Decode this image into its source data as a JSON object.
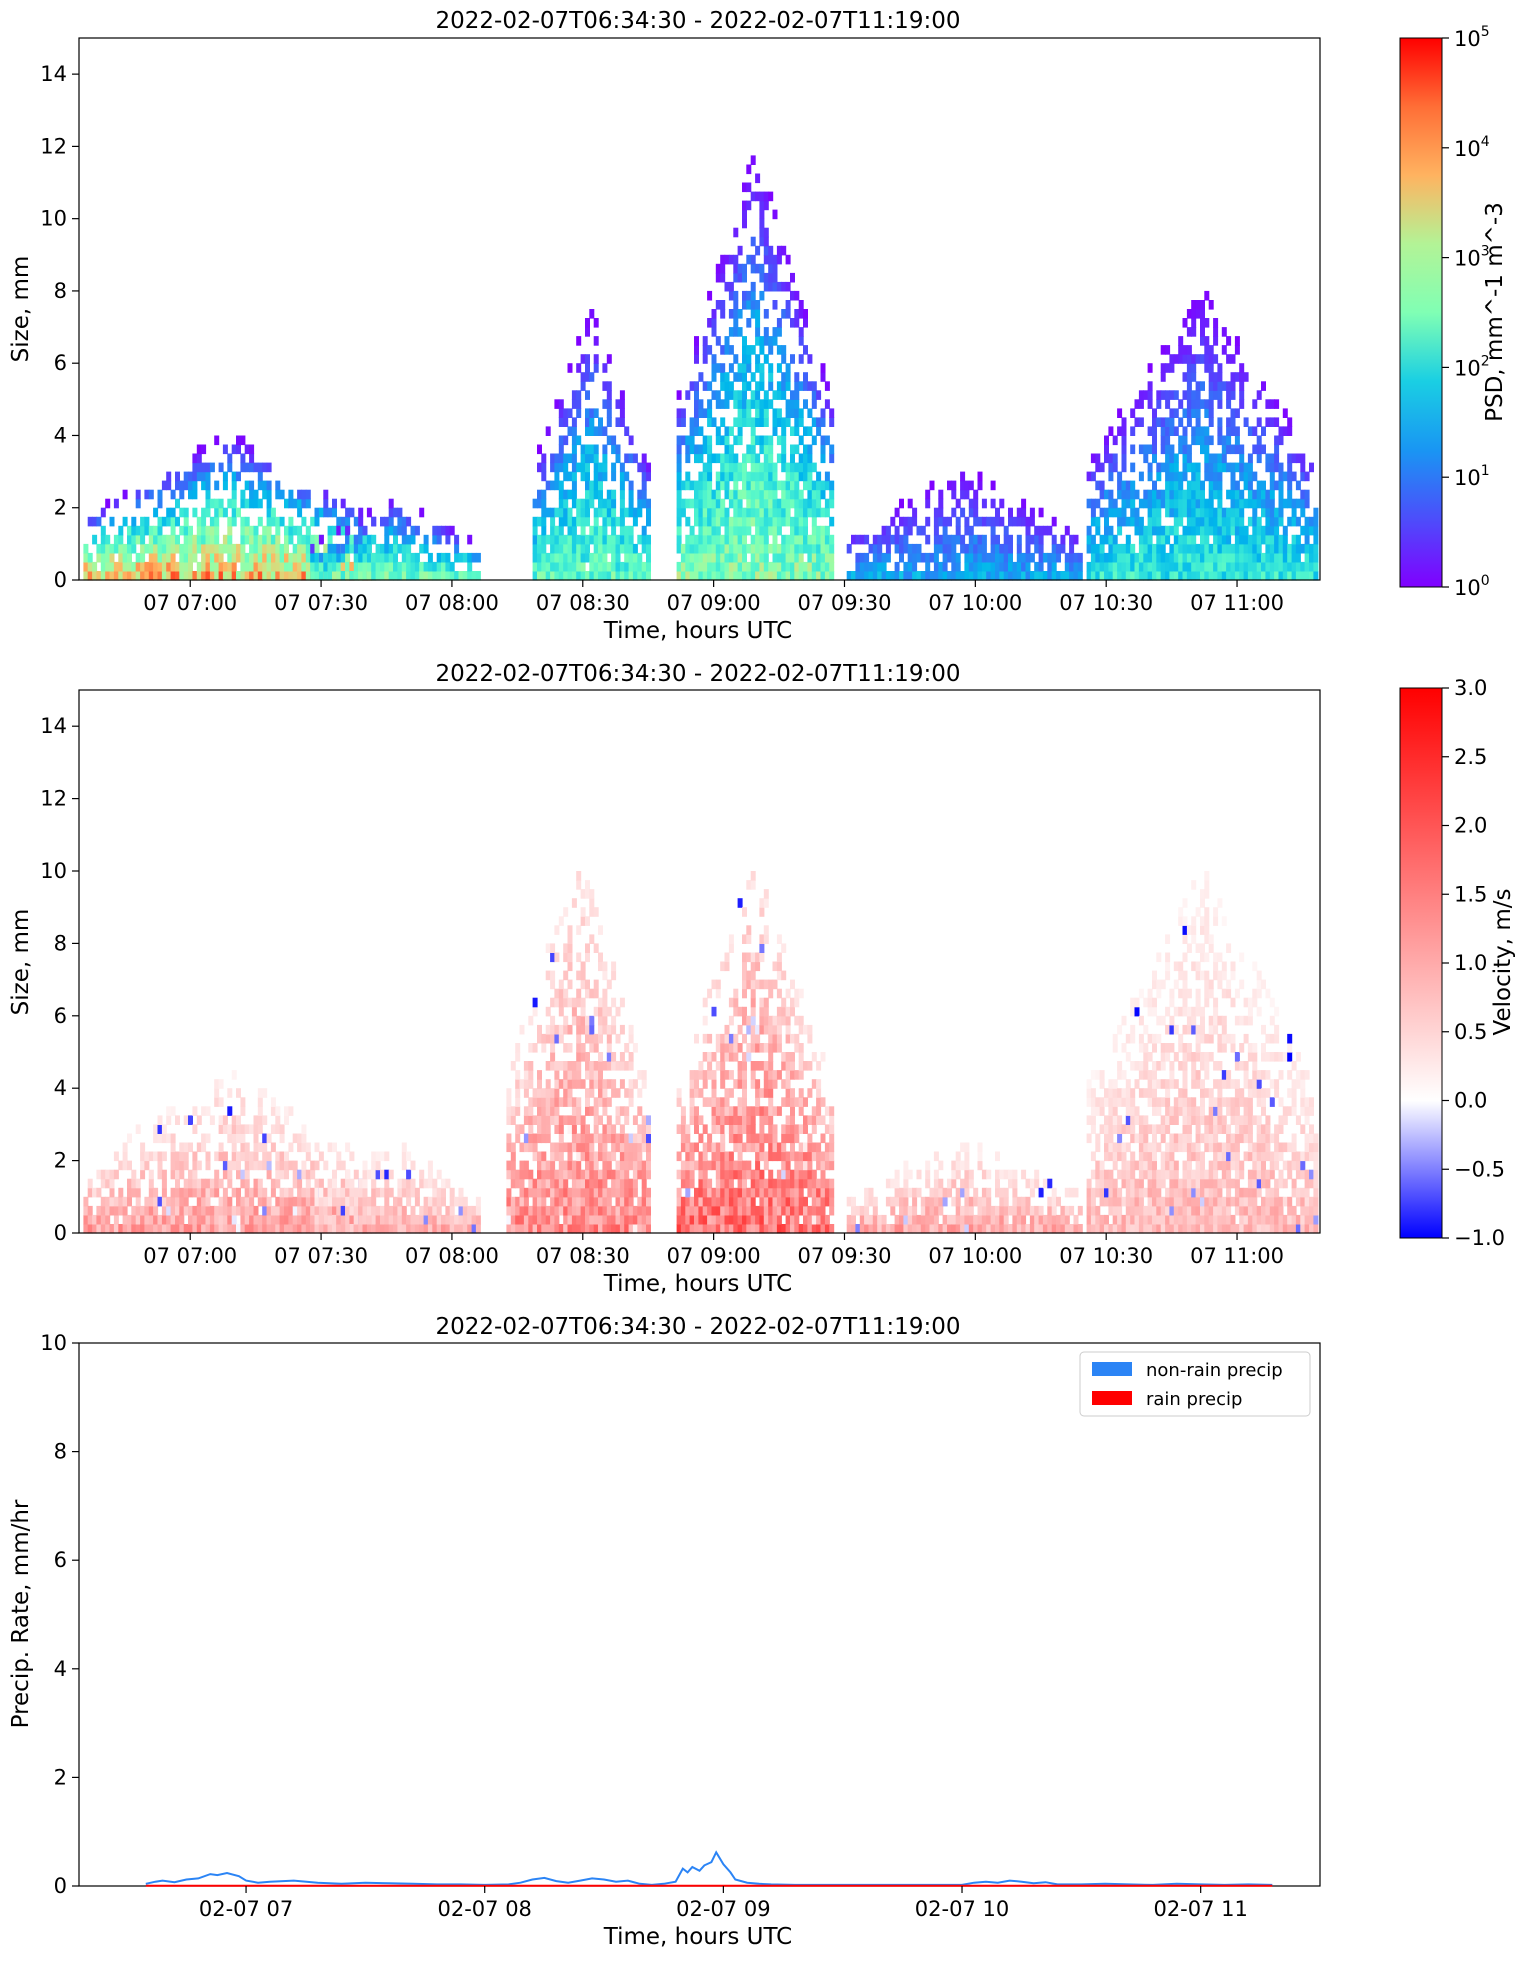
{
  "chart_data": [
    {
      "type": "heatmap",
      "title": "2022-02-07T06:34:30 - 2022-02-07T11:19:00",
      "xlabel": "Time, hours UTC",
      "ylabel": "Size, mm",
      "xlim_hours": [
        6.575,
        11.317
      ],
      "ylim": [
        0,
        15
      ],
      "xticks": [
        {
          "hour": 7.0,
          "label": "07 07:00"
        },
        {
          "hour": 7.5,
          "label": "07 07:30"
        },
        {
          "hour": 8.0,
          "label": "07 08:00"
        },
        {
          "hour": 8.5,
          "label": "07 08:30"
        },
        {
          "hour": 9.0,
          "label": "07 09:00"
        },
        {
          "hour": 9.5,
          "label": "07 09:30"
        },
        {
          "hour": 10.0,
          "label": "07 10:00"
        },
        {
          "hour": 10.5,
          "label": "07 10:30"
        },
        {
          "hour": 11.0,
          "label": "07 11:00"
        }
      ],
      "yticks": [
        0,
        2,
        4,
        6,
        8,
        10,
        12,
        14
      ],
      "colorbar": {
        "label": "PSD, mm^-1 m^-3",
        "scale": "log",
        "range": [
          1,
          100000
        ],
        "tick_bases": [
          "10",
          "10",
          "10",
          "10",
          "10",
          "10"
        ],
        "tick_exponents": [
          "0",
          "1",
          "2",
          "3",
          "4",
          "5"
        ],
        "colormap": "rainbow"
      },
      "precip_events": [
        {
          "start": 6.58,
          "end": 7.7,
          "peak_size": 4.0,
          "intensity": 3.8
        },
        {
          "start": 7.45,
          "end": 8.1,
          "peak_size": 2.2,
          "intensity": 2.5
        },
        {
          "start": 8.3,
          "end": 8.75,
          "peak_size": 7.5,
          "intensity": 2.3
        },
        {
          "start": 8.85,
          "end": 9.45,
          "peak_size": 12.0,
          "intensity": 2.7
        },
        {
          "start": 9.5,
          "end": 10.4,
          "peak_size": 3.0,
          "intensity": 1.2
        },
        {
          "start": 10.42,
          "end": 11.3,
          "peak_size": 8.0,
          "intensity": 1.9
        }
      ]
    },
    {
      "type": "heatmap",
      "title": "2022-02-07T06:34:30 - 2022-02-07T11:19:00",
      "xlabel": "Time, hours UTC",
      "ylabel": "Size, mm",
      "xlim_hours": [
        6.575,
        11.317
      ],
      "ylim": [
        0,
        15
      ],
      "xticks": [
        {
          "hour": 7.0,
          "label": "07 07:00"
        },
        {
          "hour": 7.5,
          "label": "07 07:30"
        },
        {
          "hour": 8.0,
          "label": "07 08:00"
        },
        {
          "hour": 8.5,
          "label": "07 08:30"
        },
        {
          "hour": 9.0,
          "label": "07 09:00"
        },
        {
          "hour": 9.5,
          "label": "07 09:30"
        },
        {
          "hour": 10.0,
          "label": "07 10:00"
        },
        {
          "hour": 10.5,
          "label": "07 10:30"
        },
        {
          "hour": 11.0,
          "label": "07 11:00"
        }
      ],
      "yticks": [
        0,
        2,
        4,
        6,
        8,
        10,
        12,
        14
      ],
      "colorbar": {
        "label": "Velocity, m/s",
        "scale": "linear",
        "range": [
          -1.0,
          3.0
        ],
        "ticks": [
          "3.0",
          "2.5",
          "2.0",
          "1.5",
          "1.0",
          "0.5",
          "0.0",
          "−0.5",
          "−1.0"
        ],
        "tick_values": [
          3.0,
          2.5,
          2.0,
          1.5,
          1.0,
          0.5,
          0.0,
          -0.5,
          -1.0
        ],
        "colormap": "bwr"
      },
      "precip_events": [
        {
          "start": 6.58,
          "end": 7.7,
          "peak_size": 4.4,
          "intensity": 1.2
        },
        {
          "start": 7.45,
          "end": 8.1,
          "peak_size": 2.4,
          "intensity": 1.0
        },
        {
          "start": 8.2,
          "end": 8.75,
          "peak_size": 10.5,
          "intensity": 1.5
        },
        {
          "start": 8.85,
          "end": 9.45,
          "peak_size": 10.2,
          "intensity": 1.8
        },
        {
          "start": 9.5,
          "end": 10.4,
          "peak_size": 2.5,
          "intensity": 1.1
        },
        {
          "start": 10.42,
          "end": 11.3,
          "peak_size": 10.0,
          "intensity": 0.9
        }
      ]
    },
    {
      "type": "line",
      "title": "2022-02-07T06:34:30 - 2022-02-07T11:19:00",
      "xlabel": "Time, hours UTC",
      "ylabel": "Precip. Rate, mm/hr",
      "xlim_hours": [
        6.3,
        11.5
      ],
      "ylim": [
        0,
        10
      ],
      "xticks": [
        {
          "hour": 7,
          "label": "02-07 07"
        },
        {
          "hour": 8,
          "label": "02-07 08"
        },
        {
          "hour": 9,
          "label": "02-07 09"
        },
        {
          "hour": 10,
          "label": "02-07 10"
        },
        {
          "hour": 11,
          "label": "02-07 11"
        }
      ],
      "yticks": [
        0,
        2,
        4,
        6,
        8,
        10
      ],
      "legend_position": "top-right",
      "series": [
        {
          "name": "non-rain precip",
          "color": "#2b84f5",
          "x": [
            6.58,
            6.62,
            6.65,
            6.7,
            6.75,
            6.8,
            6.85,
            6.88,
            6.92,
            6.97,
            7.0,
            7.05,
            7.1,
            7.2,
            7.3,
            7.4,
            7.5,
            7.6,
            7.7,
            7.8,
            7.9,
            8.0,
            8.1,
            8.15,
            8.2,
            8.25,
            8.3,
            8.35,
            8.4,
            8.45,
            8.5,
            8.55,
            8.6,
            8.65,
            8.7,
            8.75,
            8.8,
            8.83,
            8.85,
            8.87,
            8.9,
            8.92,
            8.95,
            8.97,
            9.0,
            9.03,
            9.05,
            9.1,
            9.15,
            9.2,
            9.3,
            9.4,
            9.5,
            9.6,
            9.7,
            9.8,
            9.9,
            10.0,
            10.05,
            10.1,
            10.15,
            10.2,
            10.25,
            10.3,
            10.35,
            10.4,
            10.5,
            10.6,
            10.7,
            10.8,
            10.9,
            11.0,
            11.1,
            11.2,
            11.3
          ],
          "values": [
            0.04,
            0.08,
            0.1,
            0.07,
            0.12,
            0.14,
            0.22,
            0.2,
            0.24,
            0.18,
            0.1,
            0.06,
            0.08,
            0.1,
            0.06,
            0.04,
            0.06,
            0.05,
            0.04,
            0.03,
            0.03,
            0.02,
            0.03,
            0.06,
            0.12,
            0.15,
            0.09,
            0.06,
            0.1,
            0.14,
            0.12,
            0.08,
            0.1,
            0.04,
            0.02,
            0.04,
            0.08,
            0.32,
            0.25,
            0.35,
            0.28,
            0.38,
            0.44,
            0.62,
            0.4,
            0.25,
            0.12,
            0.06,
            0.04,
            0.03,
            0.02,
            0.02,
            0.02,
            0.02,
            0.02,
            0.02,
            0.02,
            0.02,
            0.06,
            0.08,
            0.06,
            0.1,
            0.08,
            0.05,
            0.07,
            0.03,
            0.03,
            0.04,
            0.03,
            0.02,
            0.04,
            0.03,
            0.02,
            0.03,
            0.02
          ]
        },
        {
          "name": "rain precip",
          "color": "#ff0000",
          "x": [
            6.58,
            11.3
          ],
          "values": [
            0.005,
            0.005
          ]
        }
      ]
    }
  ]
}
